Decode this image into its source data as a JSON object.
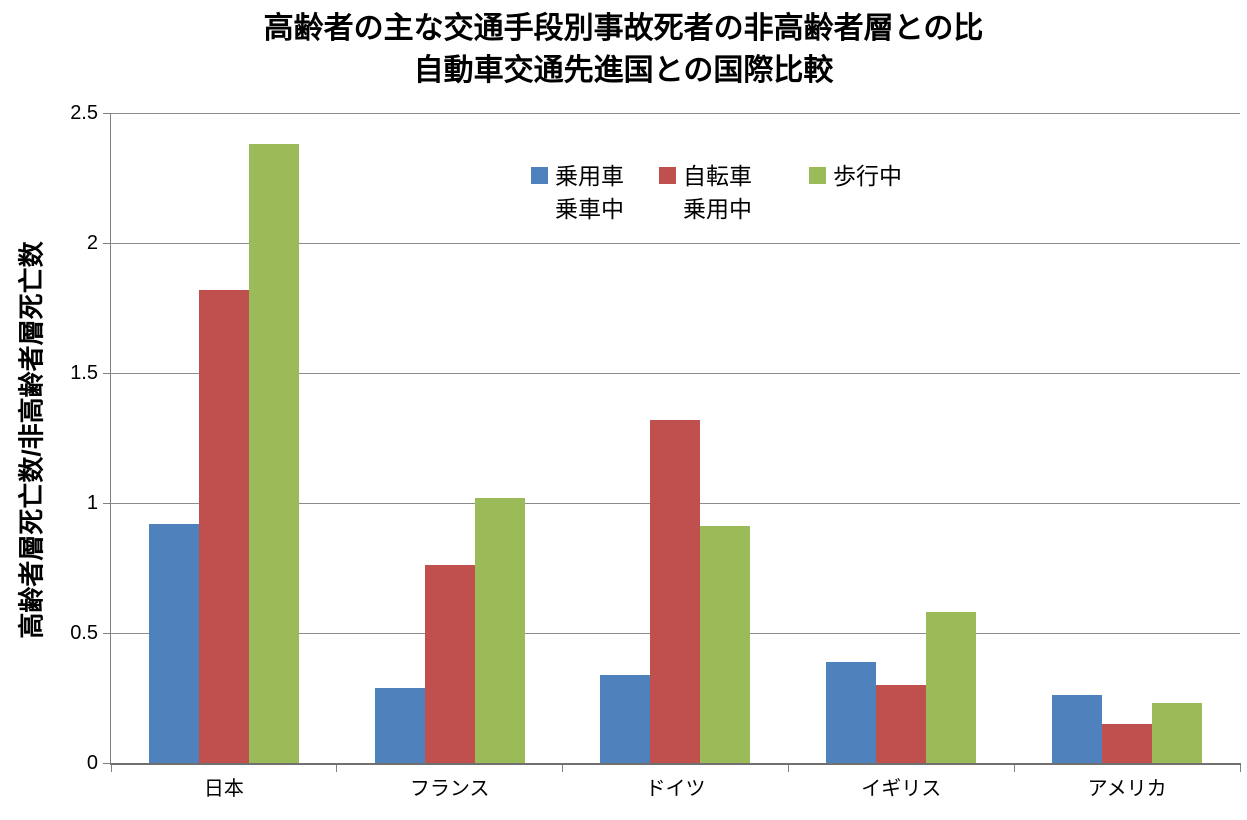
{
  "title": {
    "line1": "高齢者の主な交通手段別事故死者の非高齢者層との比",
    "line2": "自動車交通先進国との国際比較"
  },
  "chart_data": {
    "type": "bar",
    "title": "高齢者の主な交通手段別事故死者の非高齢者層との比 自動車交通先進国との国際比較",
    "categories": [
      "日本",
      "フランス",
      "ドイツ",
      "イギリス",
      "アメリカ"
    ],
    "series": [
      {
        "name": "乗用車乗車中",
        "legend_lines": [
          "乗用車",
          "乗車中"
        ],
        "color": "#4F81BD",
        "values": [
          0.92,
          0.29,
          0.34,
          0.39,
          0.26
        ]
      },
      {
        "name": "自転車乗用中",
        "legend_lines": [
          "自転車",
          "乗用中"
        ],
        "color": "#C0504D",
        "values": [
          1.82,
          0.76,
          1.32,
          0.3,
          0.15
        ]
      },
      {
        "name": "歩行中",
        "legend_lines": [
          "歩行中"
        ],
        "color": "#9BBB59",
        "values": [
          2.38,
          1.02,
          0.91,
          0.58,
          0.23
        ]
      }
    ],
    "xlabel": "",
    "ylabel": "高齢者層死亡数/非高齢者層死亡数",
    "ylim": [
      0,
      2.5
    ],
    "yticks": [
      0,
      0.5,
      1,
      1.5,
      2,
      2.5
    ],
    "ytick_labels": [
      "0",
      "0.5",
      "1",
      "1.5",
      "2",
      "2.5"
    ],
    "grid": true,
    "legend_position": "top-center-inside"
  },
  "colors": {
    "background": "#FFFFFF",
    "text": "#000000",
    "axis": "#808080",
    "gridline": "#8C8C8C"
  }
}
